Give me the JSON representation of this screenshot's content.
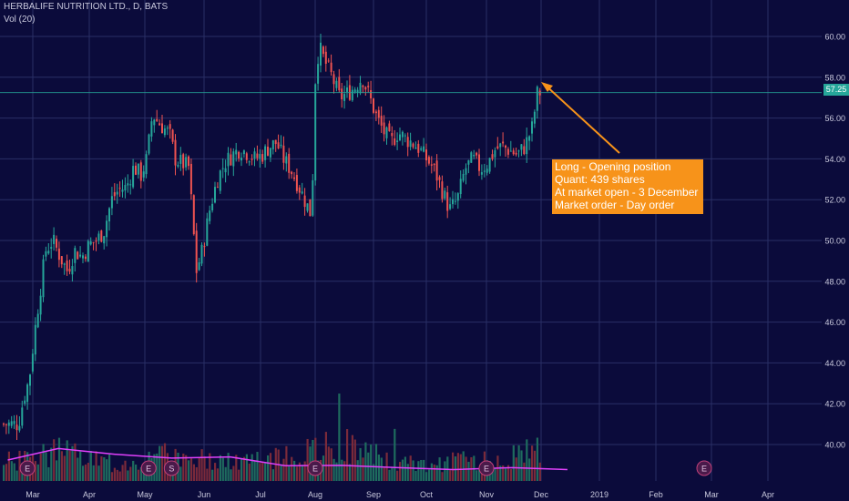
{
  "header": {
    "title": "HERBALIFE NUTRITION LTD., D, BATS",
    "indicator": "Vol (20)"
  },
  "annotation": {
    "lines": [
      "Long - Opening position",
      "Quant: 439 shares",
      "At market open - 3 December",
      "Market order - Day order"
    ]
  },
  "colors": {
    "background": "#0b0b3b",
    "grid": "#2a2f66",
    "up": "#26a69a",
    "down": "#ef5350",
    "volume_ma": "#e040fb",
    "annotation_bg": "#f7931a",
    "arrow": "#f7931a",
    "price_line": "#26a69a"
  },
  "chart_data": {
    "type": "candlestick",
    "title": "HERBALIFE NUTRITION LTD., D, BATS",
    "ylim": [
      38.5,
      61.5
    ],
    "y_ticks": [
      "40.00",
      "42.00",
      "44.00",
      "46.00",
      "48.00",
      "50.00",
      "52.00",
      "54.00",
      "56.00",
      "58.00",
      "60.00"
    ],
    "x_ticks": [
      "Mar",
      "Apr",
      "May",
      "Jun",
      "Jul",
      "Aug",
      "Sep",
      "Oct",
      "Nov",
      "Dec",
      "2019",
      "Feb",
      "Mar",
      "Apr"
    ],
    "last_price": "57.25",
    "price_series": [
      {
        "date": "Feb 21",
        "value": 41.0
      },
      {
        "date": "Feb 24",
        "value": 42.3
      },
      {
        "date": "Feb 27",
        "value": 43.2
      },
      {
        "date": "Mar 2",
        "value": 45.5
      },
      {
        "date": "Mar 5",
        "value": 47.5
      },
      {
        "date": "Mar 8",
        "value": 49.5
      },
      {
        "date": "Mar 12",
        "value": 50.0
      },
      {
        "date": "Mar 16",
        "value": 49.2
      },
      {
        "date": "Mar 20",
        "value": 48.5
      },
      {
        "date": "Mar 24",
        "value": 49.5
      },
      {
        "date": "Mar 28",
        "value": 49.2
      },
      {
        "date": "Apr 1",
        "value": 49.8
      },
      {
        "date": "Apr 5",
        "value": 50.0
      },
      {
        "date": "Apr 9",
        "value": 50.5
      },
      {
        "date": "Apr 13",
        "value": 52.0
      },
      {
        "date": "Apr 17",
        "value": 52.5
      },
      {
        "date": "Apr 21",
        "value": 52.6
      },
      {
        "date": "Apr 25",
        "value": 53.6
      },
      {
        "date": "Apr 29",
        "value": 53.2
      },
      {
        "date": "May 2",
        "value": 54.0
      },
      {
        "date": "May 5",
        "value": 56.2
      },
      {
        "date": "May 8",
        "value": 55.8
      },
      {
        "date": "May 11",
        "value": 55.5
      },
      {
        "date": "May 14",
        "value": 55.2
      },
      {
        "date": "May 17",
        "value": 54.0
      },
      {
        "date": "May 20",
        "value": 53.8
      },
      {
        "date": "May 24",
        "value": 53.6
      },
      {
        "date": "May 28",
        "value": 48.5
      },
      {
        "date": "May 31",
        "value": 49.5
      },
      {
        "date": "Jun 4",
        "value": 51.5
      },
      {
        "date": "Jun 8",
        "value": 53.0
      },
      {
        "date": "Jun 12",
        "value": 53.8
      },
      {
        "date": "Jun 16",
        "value": 54.2
      },
      {
        "date": "Jun 20",
        "value": 54.5
      },
      {
        "date": "Jun 24",
        "value": 54.3
      },
      {
        "date": "Jun 28",
        "value": 54.0
      },
      {
        "date": "Jul 2",
        "value": 54.2
      },
      {
        "date": "Jul 6",
        "value": 54.6
      },
      {
        "date": "Jul 10",
        "value": 54.8
      },
      {
        "date": "Jul 14",
        "value": 54.0
      },
      {
        "date": "Jul 18",
        "value": 53.5
      },
      {
        "date": "Jul 22",
        "value": 52.8
      },
      {
        "date": "Jul 26",
        "value": 52.0
      },
      {
        "date": "Jul 30",
        "value": 51.2
      },
      {
        "date": "Aug 1",
        "value": 57.8
      },
      {
        "date": "Aug 3",
        "value": 59.5
      },
      {
        "date": "Aug 6",
        "value": 58.8
      },
      {
        "date": "Aug 10",
        "value": 58.0
      },
      {
        "date": "Aug 14",
        "value": 57.0
      },
      {
        "date": "Aug 18",
        "value": 57.2
      },
      {
        "date": "Aug 22",
        "value": 57.5
      },
      {
        "date": "Aug 26",
        "value": 58.0
      },
      {
        "date": "Aug 30",
        "value": 57.0
      },
      {
        "date": "Sep 3",
        "value": 56.0
      },
      {
        "date": "Sep 7",
        "value": 55.3
      },
      {
        "date": "Sep 11",
        "value": 54.8
      },
      {
        "date": "Sep 15",
        "value": 55.3
      },
      {
        "date": "Sep 19",
        "value": 55.0
      },
      {
        "date": "Sep 23",
        "value": 54.8
      },
      {
        "date": "Sep 27",
        "value": 54.5
      },
      {
        "date": "Oct 1",
        "value": 54.0
      },
      {
        "date": "Oct 5",
        "value": 53.5
      },
      {
        "date": "Oct 9",
        "value": 52.5
      },
      {
        "date": "Oct 13",
        "value": 51.5
      },
      {
        "date": "Oct 17",
        "value": 52.0
      },
      {
        "date": "Oct 21",
        "value": 53.5
      },
      {
        "date": "Oct 25",
        "value": 54.0
      },
      {
        "date": "Oct 29",
        "value": 53.5
      },
      {
        "date": "Nov 2",
        "value": 53.8
      },
      {
        "date": "Nov 6",
        "value": 54.5
      },
      {
        "date": "Nov 10",
        "value": 54.6
      },
      {
        "date": "Nov 14",
        "value": 54.4
      },
      {
        "date": "Nov 18",
        "value": 54.2
      },
      {
        "date": "Nov 22",
        "value": 54.6
      },
      {
        "date": "Nov 26",
        "value": 55.5
      },
      {
        "date": "Nov 29",
        "value": 57.25
      }
    ],
    "volume_max_shown": 20,
    "volume": [
      {
        "date": "Feb",
        "value": 6
      },
      {
        "date": "Mar",
        "value": 9
      },
      {
        "date": "Apr",
        "value": 5
      },
      {
        "date": "May",
        "value": 8
      },
      {
        "date": "Jun",
        "value": 6
      },
      {
        "date": "Jul",
        "value": 7
      },
      {
        "date": "Aug",
        "value": 12
      },
      {
        "date": "Sep",
        "value": 5
      },
      {
        "date": "Oct",
        "value": 6
      },
      {
        "date": "Nov",
        "value": 7
      },
      {
        "date": "Dec",
        "value": 14
      }
    ],
    "volume_ma_series": [
      {
        "date": "Feb",
        "value": 5.0
      },
      {
        "date": "Mar",
        "value": 8.0
      },
      {
        "date": "Apr",
        "value": 6.5
      },
      {
        "date": "May",
        "value": 5.5
      },
      {
        "date": "Jun",
        "value": 5.8
      },
      {
        "date": "Jul",
        "value": 3.5
      },
      {
        "date": "Aug",
        "value": 3.6
      },
      {
        "date": "Sep",
        "value": 3.0
      },
      {
        "date": "Oct",
        "value": 2.5
      },
      {
        "date": "Nov",
        "value": 3.0
      },
      {
        "date": "Dec",
        "value": 2.5
      }
    ],
    "events": [
      {
        "label": "E",
        "date": "Feb 26"
      },
      {
        "label": "E",
        "date": "May 3"
      },
      {
        "label": "S",
        "date": "May 15"
      },
      {
        "label": "E",
        "date": "Aug 1"
      },
      {
        "label": "E",
        "date": "Nov 1"
      },
      {
        "label": "E",
        "date": "Mar 1 2019"
      }
    ]
  }
}
